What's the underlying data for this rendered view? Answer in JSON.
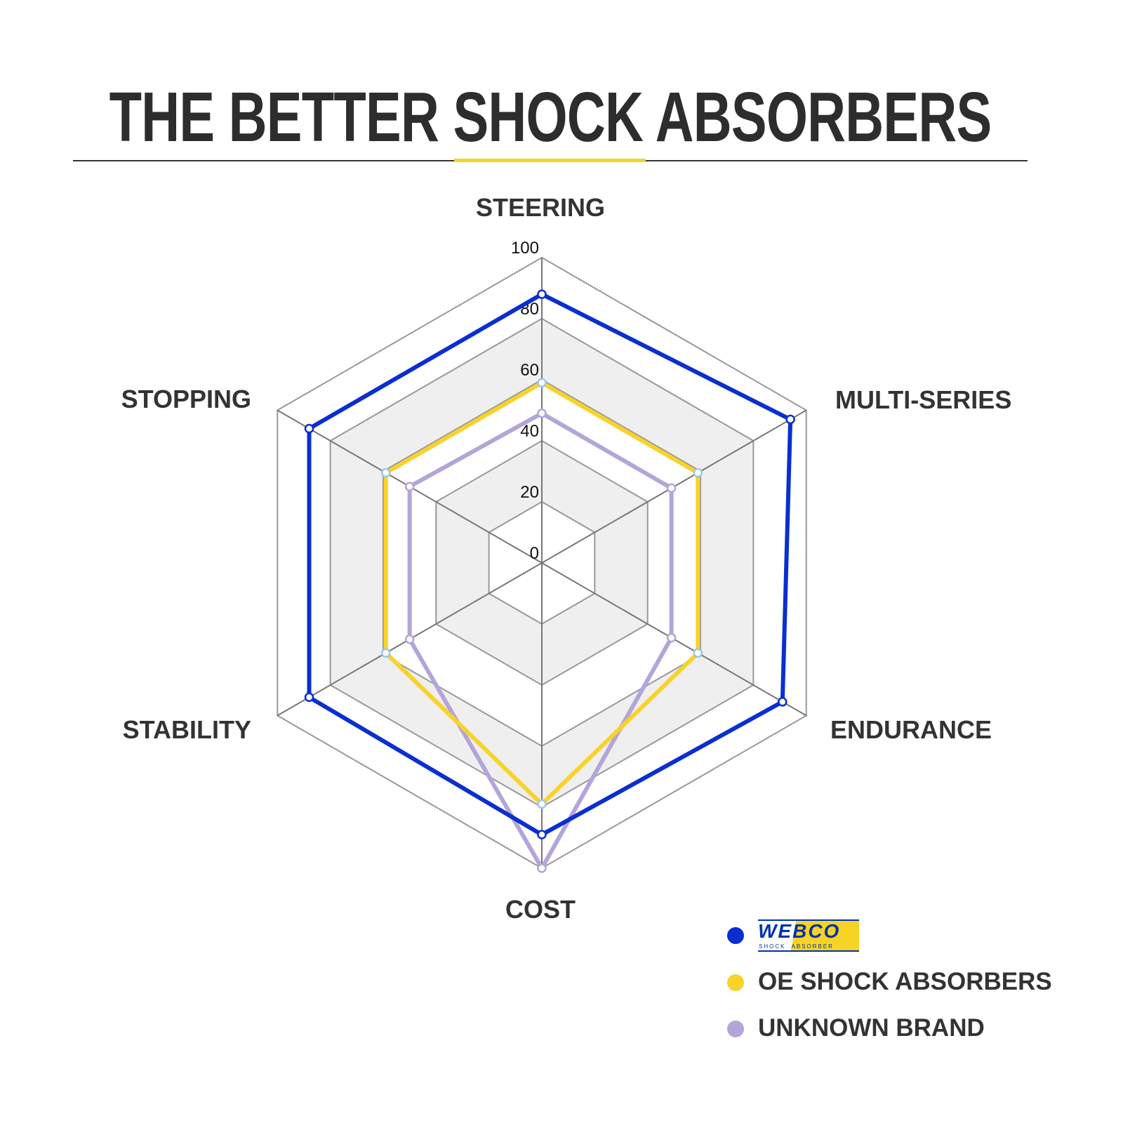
{
  "title": "THE BETTER SHOCK ABSORBERS",
  "chart_data": {
    "type": "radar",
    "axes": [
      "STEERING",
      "MULTI-SERIES",
      "ENDURANCE",
      "COST",
      "STABILITY",
      "STOPPING"
    ],
    "ticks": [
      "0",
      "20",
      "40",
      "60",
      "80",
      "100"
    ],
    "range": [
      0,
      100
    ],
    "series": [
      {
        "name": "WEBCO SHOCK ABSORBER",
        "color": "#0a2fd0",
        "values": [
          88,
          94,
          91,
          89,
          88,
          88
        ]
      },
      {
        "name": "OE SHOCK ABSORBERS",
        "color": "#f9d22a",
        "values": [
          59,
          59,
          59,
          79,
          59,
          59
        ]
      },
      {
        "name": "UNKNOWN BRAND",
        "color": "#b3a5d8",
        "values": [
          49,
          49,
          49,
          100,
          50,
          50
        ]
      }
    ],
    "legend_position": "bottom-right",
    "grid": true
  },
  "legend": {
    "logo_text": "WEBCO",
    "logo_subtext": "SHOCK  ABSORBER"
  }
}
